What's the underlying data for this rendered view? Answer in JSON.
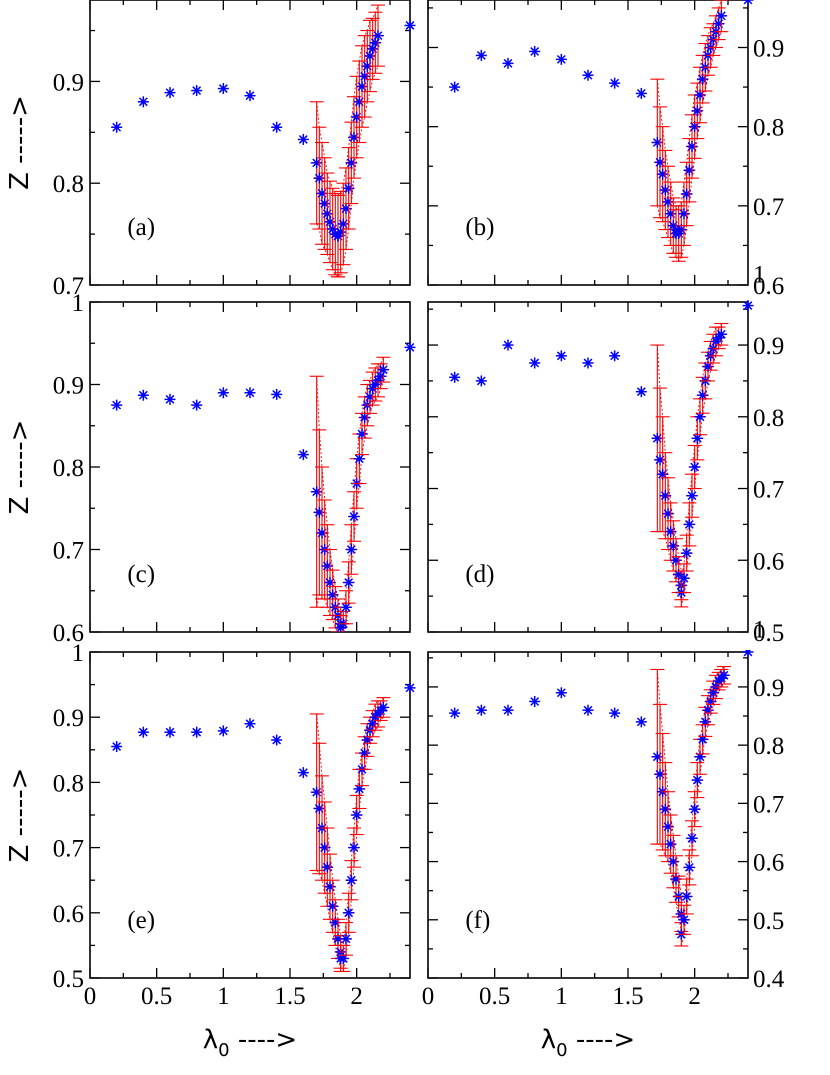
{
  "chart_data": [
    {
      "panel": "(a)",
      "type": "scatter",
      "xlim": [
        0,
        2.4
      ],
      "ylim": [
        0.7,
        0.98
      ],
      "ylabel": "Z ----->",
      "xlabel": "",
      "y_axis_side": "left",
      "ytick_labels": [
        "0.7",
        "0.8",
        "0.9"
      ],
      "xtick_labels": [],
      "x_left": [
        0.2,
        0.4,
        0.6,
        0.8,
        1.0,
        1.2,
        1.4,
        1.6,
        1.7,
        1.72,
        1.74,
        1.76,
        1.78,
        1.8,
        1.82,
        1.84,
        1.86
      ],
      "y_left": [
        0.855,
        0.88,
        0.889,
        0.891,
        0.893,
        0.886,
        0.855,
        0.843,
        0.82,
        0.805,
        0.79,
        0.78,
        0.77,
        0.762,
        0.755,
        0.75,
        0.748
      ],
      "err_left": [
        0,
        0,
        0,
        0,
        0,
        0,
        0,
        0,
        0.06,
        0.05,
        0.05,
        0.045,
        0.04,
        0.04,
        0.04,
        0.04,
        0.04
      ],
      "x_right": [
        1.86,
        1.88,
        1.9,
        1.92,
        1.94,
        1.96,
        1.98,
        2.0,
        2.02,
        2.04,
        2.06,
        2.08,
        2.1,
        2.12,
        2.14,
        2.16,
        2.4
      ],
      "y_right": [
        0.748,
        0.752,
        0.76,
        0.775,
        0.795,
        0.82,
        0.845,
        0.865,
        0.88,
        0.895,
        0.905,
        0.915,
        0.925,
        0.932,
        0.938,
        0.945,
        0.955
      ],
      "err_right": [
        0.04,
        0.04,
        0.04,
        0.04,
        0.04,
        0.04,
        0.04,
        0.04,
        0.04,
        0.04,
        0.04,
        0.035,
        0.035,
        0.03,
        0.03,
        0.03,
        0
      ]
    },
    {
      "panel": "(b)",
      "type": "scatter",
      "xlim": [
        0,
        2.4
      ],
      "ylim": [
        0.6,
        0.96
      ],
      "ylabel": "",
      "xlabel": "",
      "y_axis_side": "right",
      "ytick_labels": [
        "0.6",
        "0.7",
        "0.8",
        "0.9"
      ],
      "xtick_labels": [],
      "x_left": [
        0.2,
        0.4,
        0.6,
        0.8,
        1.0,
        1.2,
        1.4,
        1.6,
        1.72,
        1.74,
        1.76,
        1.78,
        1.8,
        1.82,
        1.84,
        1.86
      ],
      "y_left": [
        0.85,
        0.89,
        0.88,
        0.895,
        0.885,
        0.865,
        0.855,
        0.842,
        0.78,
        0.755,
        0.74,
        0.72,
        0.705,
        0.69,
        0.675,
        0.67
      ],
      "err_left": [
        0,
        0,
        0,
        0,
        0,
        0,
        0,
        0,
        0.08,
        0.07,
        0.06,
        0.05,
        0.045,
        0.04,
        0.035,
        0.03
      ],
      "x_right": [
        1.86,
        1.88,
        1.9,
        1.92,
        1.94,
        1.96,
        1.98,
        2.0,
        2.02,
        2.04,
        2.06,
        2.08,
        2.1,
        2.12,
        2.14,
        2.16,
        2.18,
        2.2,
        2.4
      ],
      "y_right": [
        0.665,
        0.665,
        0.67,
        0.69,
        0.715,
        0.745,
        0.775,
        0.8,
        0.82,
        0.84,
        0.86,
        0.875,
        0.89,
        0.9,
        0.91,
        0.92,
        0.93,
        0.94,
        0.96
      ],
      "err_right": [
        0.03,
        0.035,
        0.035,
        0.04,
        0.04,
        0.04,
        0.04,
        0.04,
        0.035,
        0.035,
        0.03,
        0.03,
        0.025,
        0.025,
        0.02,
        0.02,
        0.02,
        0.02,
        0
      ]
    },
    {
      "panel": "(c)",
      "type": "scatter",
      "xlim": [
        0,
        2.4
      ],
      "ylim": [
        0.6,
        1.0
      ],
      "ylabel": "Z ----->",
      "xlabel": "",
      "y_axis_side": "left",
      "ytick_labels": [
        "0.6",
        "0.7",
        "0.8",
        "0.9",
        "1"
      ],
      "xtick_labels": [],
      "x_left": [
        0.2,
        0.4,
        0.6,
        0.8,
        1.0,
        1.2,
        1.4,
        1.6,
        1.7,
        1.72,
        1.74,
        1.76,
        1.78,
        1.8,
        1.82,
        1.84,
        1.86,
        1.88
      ],
      "y_left": [
        0.875,
        0.887,
        0.882,
        0.875,
        0.89,
        0.89,
        0.888,
        0.815,
        0.77,
        0.745,
        0.72,
        0.7,
        0.68,
        0.66,
        0.645,
        0.63,
        0.62,
        0.61
      ],
      "err_left": [
        0,
        0,
        0,
        0,
        0,
        0,
        0,
        0,
        0.14,
        0.1,
        0.08,
        0.06,
        0.05,
        0.04,
        0.03,
        0.025,
        0.02,
        0.02
      ],
      "x_right": [
        1.88,
        1.9,
        1.92,
        1.94,
        1.96,
        1.98,
        2.0,
        2.02,
        2.04,
        2.06,
        2.08,
        2.1,
        2.12,
        2.14,
        2.16,
        2.18,
        2.2,
        2.4
      ],
      "y_right": [
        0.605,
        0.61,
        0.63,
        0.66,
        0.7,
        0.74,
        0.78,
        0.81,
        0.84,
        0.86,
        0.875,
        0.885,
        0.895,
        0.9,
        0.905,
        0.91,
        0.918,
        0.945
      ],
      "err_right": [
        0.015,
        0.015,
        0.02,
        0.025,
        0.03,
        0.03,
        0.03,
        0.03,
        0.025,
        0.025,
        0.025,
        0.02,
        0.02,
        0.02,
        0.02,
        0.015,
        0.015,
        0
      ]
    },
    {
      "panel": "(d)",
      "type": "scatter",
      "xlim": [
        0,
        2.4
      ],
      "ylim": [
        0.5,
        0.96
      ],
      "ylabel": "",
      "xlabel": "",
      "y_axis_side": "right",
      "ytick_labels": [
        "0.5",
        "0.6",
        "0.7",
        "0.8",
        "0.9",
        "1"
      ],
      "xtick_labels": [],
      "x_left": [
        0.2,
        0.4,
        0.6,
        0.8,
        1.0,
        1.2,
        1.4,
        1.6,
        1.72,
        1.74,
        1.76,
        1.78,
        1.8,
        1.82,
        1.84,
        1.86,
        1.88,
        1.9
      ],
      "y_left": [
        0.855,
        0.85,
        0.9,
        0.875,
        0.885,
        0.875,
        0.885,
        0.835,
        0.77,
        0.74,
        0.72,
        0.69,
        0.665,
        0.64,
        0.62,
        0.6,
        0.58,
        0.565
      ],
      "err_left": [
        0,
        0,
        0,
        0,
        0,
        0,
        0,
        0,
        0.13,
        0.1,
        0.08,
        0.06,
        0.05,
        0.04,
        0.035,
        0.03,
        0.025,
        0.02
      ],
      "x_right": [
        1.9,
        1.92,
        1.94,
        1.96,
        1.98,
        2.0,
        2.02,
        2.04,
        2.06,
        2.08,
        2.1,
        2.12,
        2.14,
        2.16,
        2.18,
        2.2,
        2.4
      ],
      "y_right": [
        0.555,
        0.575,
        0.61,
        0.65,
        0.69,
        0.73,
        0.77,
        0.8,
        0.83,
        0.85,
        0.87,
        0.885,
        0.895,
        0.905,
        0.91,
        0.915,
        0.955
      ],
      "err_right": [
        0.02,
        0.02,
        0.025,
        0.03,
        0.03,
        0.03,
        0.03,
        0.025,
        0.025,
        0.025,
        0.02,
        0.02,
        0.02,
        0.02,
        0.015,
        0.015,
        0
      ]
    },
    {
      "panel": "(e)",
      "type": "scatter",
      "xlim": [
        0,
        2.4
      ],
      "ylim": [
        0.5,
        1.0
      ],
      "ylabel": "Z ----->",
      "xlabel": "λ0 ---->",
      "y_axis_side": "left",
      "ytick_labels": [
        "0.5",
        "0.6",
        "0.7",
        "0.8",
        "0.9",
        "1"
      ],
      "xtick_labels": [
        "0",
        "0.5",
        "1",
        "1.5",
        "2"
      ],
      "x_left": [
        0.2,
        0.4,
        0.6,
        0.8,
        1.0,
        1.2,
        1.4,
        1.6,
        1.7,
        1.72,
        1.74,
        1.76,
        1.78,
        1.8,
        1.82,
        1.84,
        1.86,
        1.88
      ],
      "y_left": [
        0.855,
        0.877,
        0.877,
        0.877,
        0.879,
        0.89,
        0.865,
        0.815,
        0.785,
        0.76,
        0.73,
        0.7,
        0.67,
        0.64,
        0.61,
        0.585,
        0.56,
        0.54
      ],
      "err_left": [
        0,
        0,
        0,
        0,
        0,
        0,
        0,
        0,
        0.12,
        0.1,
        0.08,
        0.07,
        0.06,
        0.05,
        0.04,
        0.035,
        0.03,
        0.025
      ],
      "x_right": [
        1.88,
        1.9,
        1.92,
        1.94,
        1.96,
        1.98,
        2.0,
        2.02,
        2.04,
        2.06,
        2.08,
        2.1,
        2.12,
        2.14,
        2.16,
        2.18,
        2.2,
        2.4
      ],
      "y_right": [
        0.53,
        0.53,
        0.56,
        0.6,
        0.65,
        0.7,
        0.75,
        0.79,
        0.82,
        0.845,
        0.865,
        0.88,
        0.89,
        0.9,
        0.905,
        0.91,
        0.915,
        0.945
      ],
      "err_right": [
        0.02,
        0.02,
        0.025,
        0.03,
        0.03,
        0.03,
        0.03,
        0.03,
        0.025,
        0.025,
        0.025,
        0.02,
        0.02,
        0.02,
        0.02,
        0.015,
        0.015,
        0
      ]
    },
    {
      "panel": "(f)",
      "type": "scatter",
      "xlim": [
        0,
        2.4
      ],
      "ylim": [
        0.4,
        0.96
      ],
      "ylabel": "",
      "xlabel": "λ0 ---->",
      "y_axis_side": "right",
      "ytick_labels": [
        "0.4",
        "0.5",
        "0.6",
        "0.7",
        "0.8",
        "0.9",
        "1"
      ],
      "xtick_labels": [
        "0",
        "0.5",
        "1",
        "1.5",
        "2"
      ],
      "x_left": [
        0.2,
        0.4,
        0.6,
        0.8,
        1.0,
        1.2,
        1.4,
        1.6,
        1.72,
        1.74,
        1.76,
        1.78,
        1.8,
        1.82,
        1.84,
        1.86,
        1.88,
        1.9
      ],
      "y_left": [
        0.855,
        0.86,
        0.86,
        0.875,
        0.89,
        0.86,
        0.855,
        0.84,
        0.78,
        0.75,
        0.72,
        0.69,
        0.66,
        0.63,
        0.6,
        0.57,
        0.54,
        0.51
      ],
      "err_left": [
        0,
        0,
        0,
        0,
        0,
        0,
        0,
        0,
        0.15,
        0.12,
        0.1,
        0.08,
        0.06,
        0.05,
        0.045,
        0.04,
        0.035,
        0.03
      ],
      "x_right": [
        1.9,
        1.92,
        1.94,
        1.96,
        1.98,
        2.0,
        2.02,
        2.04,
        2.06,
        2.08,
        2.1,
        2.12,
        2.14,
        2.16,
        2.18,
        2.2,
        2.22,
        2.4
      ],
      "y_right": [
        0.475,
        0.5,
        0.54,
        0.59,
        0.64,
        0.69,
        0.74,
        0.78,
        0.81,
        0.84,
        0.86,
        0.875,
        0.89,
        0.9,
        0.91,
        0.915,
        0.92,
        0.96
      ],
      "err_right": [
        0.02,
        0.025,
        0.03,
        0.03,
        0.03,
        0.03,
        0.03,
        0.03,
        0.025,
        0.025,
        0.025,
        0.02,
        0.02,
        0.02,
        0.015,
        0.015,
        0.015,
        0
      ]
    }
  ]
}
